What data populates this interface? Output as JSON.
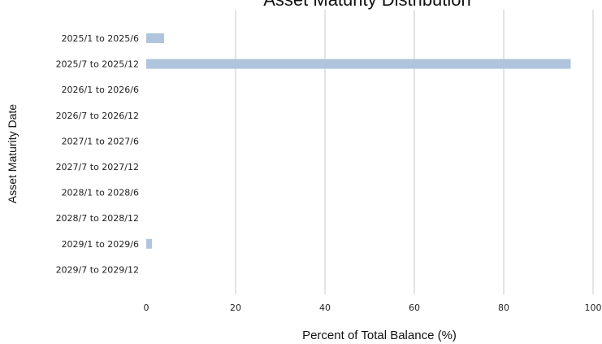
{
  "chart_data": {
    "type": "bar",
    "orientation": "horizontal",
    "title": "Asset Maturity Distribution",
    "xlabel": "Percent of Total Balance (%)",
    "ylabel": "Asset Maturity Date",
    "categories": [
      "2025/1 to 2025/6",
      "2025/7 to 2025/12",
      "2026/1 to 2026/6",
      "2026/7 to 2026/12",
      "2027/1 to 2027/6",
      "2027/7 to 2027/12",
      "2028/1 to 2028/6",
      "2028/7 to 2028/12",
      "2029/1 to 2029/6",
      "2029/7 to 2029/12"
    ],
    "values": [
      4.0,
      95.0,
      0,
      0,
      0,
      0,
      0,
      0,
      1.3,
      0
    ],
    "xlim": [
      0,
      100
    ],
    "xticks": [
      0,
      20,
      40,
      60,
      80,
      100
    ],
    "grid": "vertical",
    "bar_color": "#b0c4de",
    "grid_color": "#c8c8c8"
  }
}
